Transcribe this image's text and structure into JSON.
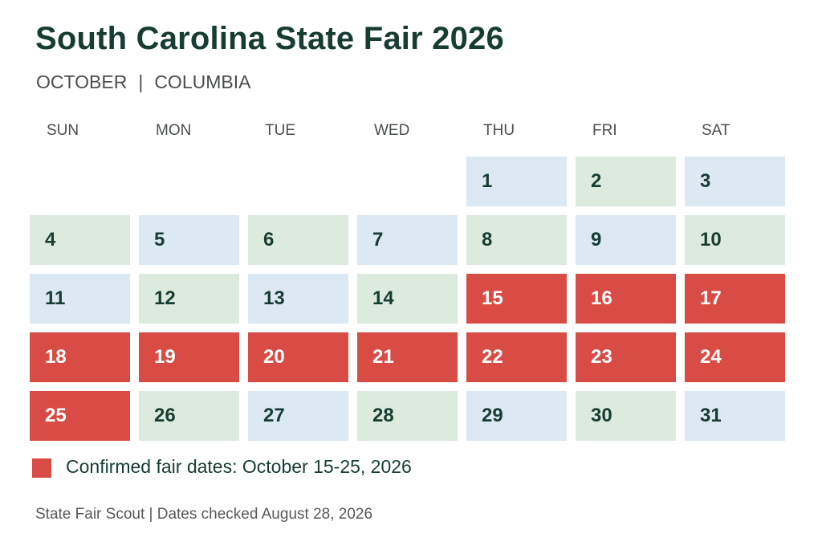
{
  "header": {
    "title": "South Carolina State Fair 2026",
    "subtitle_month": "OCTOBER",
    "subtitle_separator": "|",
    "subtitle_city": "COLUMBIA"
  },
  "weekdays": [
    "SUN",
    "MON",
    "TUE",
    "WED",
    "THU",
    "FRI",
    "SAT"
  ],
  "calendar": {
    "leading_blank_days": 4,
    "days": [
      {
        "day": "1",
        "status": "blue"
      },
      {
        "day": "2",
        "status": "green"
      },
      {
        "day": "3",
        "status": "blue"
      },
      {
        "day": "4",
        "status": "green"
      },
      {
        "day": "5",
        "status": "blue"
      },
      {
        "day": "6",
        "status": "green"
      },
      {
        "day": "7",
        "status": "blue"
      },
      {
        "day": "8",
        "status": "green"
      },
      {
        "day": "9",
        "status": "blue"
      },
      {
        "day": "10",
        "status": "green"
      },
      {
        "day": "11",
        "status": "blue"
      },
      {
        "day": "12",
        "status": "green"
      },
      {
        "day": "13",
        "status": "blue"
      },
      {
        "day": "14",
        "status": "green"
      },
      {
        "day": "15",
        "status": "fair"
      },
      {
        "day": "16",
        "status": "fair"
      },
      {
        "day": "17",
        "status": "fair"
      },
      {
        "day": "18",
        "status": "fair"
      },
      {
        "day": "19",
        "status": "fair"
      },
      {
        "day": "20",
        "status": "fair"
      },
      {
        "day": "21",
        "status": "fair"
      },
      {
        "day": "22",
        "status": "fair"
      },
      {
        "day": "23",
        "status": "fair"
      },
      {
        "day": "24",
        "status": "fair"
      },
      {
        "day": "25",
        "status": "fair"
      },
      {
        "day": "26",
        "status": "green"
      },
      {
        "day": "27",
        "status": "blue"
      },
      {
        "day": "28",
        "status": "green"
      },
      {
        "day": "29",
        "status": "blue"
      },
      {
        "day": "30",
        "status": "green"
      },
      {
        "day": "31",
        "status": "blue"
      }
    ]
  },
  "legend": {
    "label": "Confirmed fair dates: October 15-25, 2026",
    "color": "#d94c45"
  },
  "footer": {
    "text": "State Fair Scout | Dates checked August 28, 2026"
  },
  "colors": {
    "title": "#173d33",
    "fair": "#d94c45",
    "blue_cell": "#dce8f2",
    "green_cell": "#dcebde"
  }
}
